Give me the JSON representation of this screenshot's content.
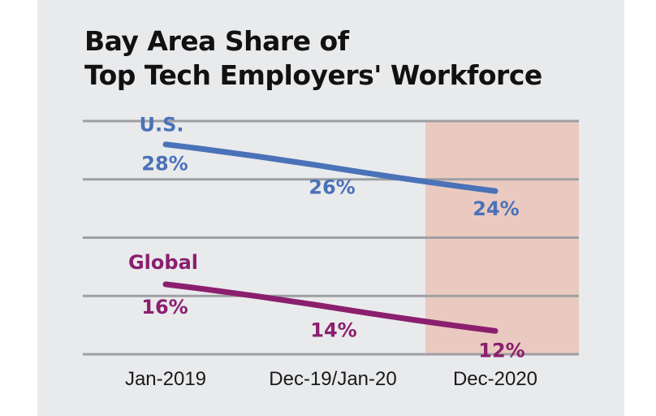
{
  "chart_data": {
    "type": "line",
    "title_lines": [
      "Bay Area Share of",
      "Top Tech Employers' Workforce"
    ],
    "categories": [
      "Jan-2019",
      "Dec-19/Jan-20",
      "Dec-2020"
    ],
    "series": [
      {
        "name": "U.S.",
        "values": [
          28,
          26,
          24
        ],
        "value_labels": [
          "28%",
          "26%",
          "24%"
        ],
        "color": "#4a72b8"
      },
      {
        "name": "Global",
        "values": [
          16,
          14,
          12
        ],
        "value_labels": [
          "16%",
          "14%",
          "12%"
        ],
        "color": "#8b1f6e"
      }
    ],
    "ylim": [
      10,
      30
    ],
    "yticks": [
      10,
      15,
      20,
      25,
      30
    ],
    "grid": true,
    "highlight": {
      "from_category": "Dec-19/Jan-20",
      "to_category": "Dec-2020",
      "color": "#eacac0"
    },
    "panel_color": "#e9eaec",
    "gridline_color": "#9e9fa3"
  }
}
